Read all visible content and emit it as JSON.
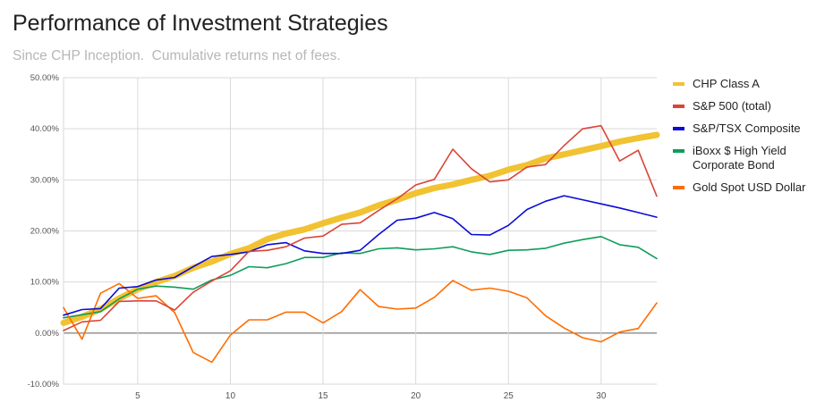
{
  "chart_data": {
    "type": "line",
    "title": "Performance of Investment Strategies",
    "subtitle": "Since CHP Inception.  Cumulative returns net of fees.",
    "xlim": [
      1,
      33
    ],
    "ylim": [
      -10,
      50
    ],
    "x_ticks": [
      5,
      10,
      15,
      20,
      25,
      30
    ],
    "y_ticks": [
      -10,
      0,
      10,
      20,
      30,
      40,
      50
    ],
    "y_tick_labels": [
      "-10.00%",
      "0.00%",
      "10.00%",
      "20.00%",
      "30.00%",
      "40.00%",
      "50.00%"
    ],
    "grid": true,
    "legend_position": "right",
    "x": [
      1,
      2,
      3,
      4,
      5,
      6,
      7,
      8,
      9,
      10,
      11,
      12,
      13,
      14,
      15,
      16,
      17,
      18,
      19,
      20,
      21,
      22,
      23,
      24,
      25,
      26,
      27,
      28,
      29,
      30,
      31,
      32,
      33
    ],
    "series": [
      {
        "name": "CHP Class A",
        "color": "#f1c232",
        "values": [
          2.0,
          3.2,
          4.7,
          6.8,
          8.6,
          10.0,
          11.2,
          12.8,
          14.0,
          15.5,
          16.6,
          18.4,
          19.5,
          20.3,
          21.5,
          22.6,
          23.6,
          25.0,
          26.1,
          27.4,
          28.4,
          29.1,
          30.0,
          30.8,
          32.0,
          32.9,
          34.2,
          35.0,
          35.8,
          36.6,
          37.5,
          38.2,
          38.8
        ]
      },
      {
        "name": "S&P 500 (total)",
        "color": "#db4437",
        "values": [
          0.5,
          2.2,
          2.5,
          6.2,
          6.3,
          6.3,
          4.5,
          8.0,
          10.2,
          12.2,
          16.0,
          16.2,
          16.9,
          18.6,
          19.0,
          21.3,
          21.6,
          24.0,
          26.3,
          29.0,
          30.1,
          36.0,
          32.2,
          29.6,
          30.0,
          32.5,
          33.0,
          36.7,
          40.0,
          40.6,
          33.7,
          35.8,
          26.8
        ]
      },
      {
        "name": "S&P/TSX Composite",
        "color": "#0b0bd8",
        "values": [
          3.5,
          4.6,
          4.8,
          8.8,
          9.1,
          10.4,
          10.9,
          13.0,
          15.0,
          15.4,
          15.9,
          17.3,
          17.7,
          16.1,
          15.6,
          15.6,
          16.2,
          19.3,
          22.1,
          22.5,
          23.6,
          22.4,
          19.3,
          19.2,
          21.1,
          24.2,
          25.8,
          26.9,
          26.1,
          25.3,
          24.5,
          23.6,
          22.7
        ]
      },
      {
        "name": "iBoxx $ High Yield Corporate Bond",
        "color": "#0f9d58",
        "values": [
          3.0,
          3.6,
          4.2,
          6.7,
          8.6,
          9.2,
          9.0,
          8.6,
          10.4,
          11.3,
          13.0,
          12.8,
          13.6,
          14.8,
          14.8,
          15.7,
          15.6,
          16.5,
          16.7,
          16.3,
          16.5,
          16.9,
          15.9,
          15.4,
          16.2,
          16.3,
          16.6,
          17.6,
          18.3,
          18.9,
          17.3,
          16.8,
          14.6
        ]
      },
      {
        "name": "Gold Spot USD Dollar",
        "color": "#ff6d01",
        "values": [
          5.0,
          -1.2,
          7.8,
          9.7,
          6.8,
          7.3,
          4.0,
          -3.8,
          -5.7,
          -0.4,
          2.6,
          2.6,
          4.1,
          4.1,
          2.0,
          4.2,
          8.5,
          5.2,
          4.7,
          4.9,
          7.0,
          10.3,
          8.4,
          8.8,
          8.2,
          6.9,
          3.4,
          1.0,
          -0.9,
          -1.7,
          0.2,
          0.9,
          5.9
        ]
      }
    ]
  }
}
